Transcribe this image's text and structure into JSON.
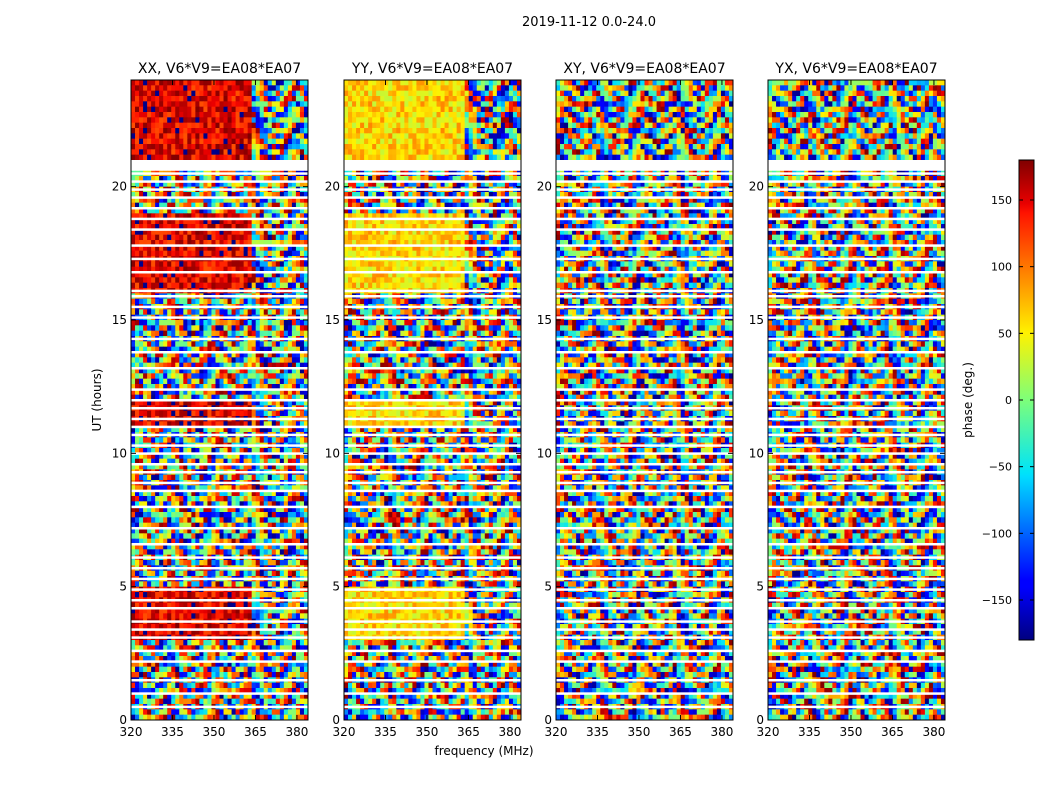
{
  "chart_data": {
    "type": "heatmap",
    "suptitle": "2019-11-12 0.0-24.0",
    "xlabel": "frequency (MHz)",
    "ylabel": "UT (hours)",
    "xlim": [
      320,
      384
    ],
    "ylim": [
      0,
      24
    ],
    "xticks": [
      320,
      335,
      350,
      365,
      380
    ],
    "yticks": [
      0,
      5,
      10,
      15,
      20
    ],
    "colormap": "jet",
    "panels": [
      {
        "title": "XX, V6*V9=EA08*EA07",
        "base_phase": 150,
        "band_break_mhz": 363
      },
      {
        "title": "YY, V6*V9=EA08*EA07",
        "base_phase": 60,
        "band_break_mhz": 363
      },
      {
        "title": "XY, V6*V9=EA08*EA07",
        "base_phase": 0,
        "band_break_mhz": 363
      },
      {
        "title": "YX, V6*V9=EA08*EA07",
        "base_phase": 0,
        "band_break_mhz": 363
      }
    ],
    "flagged_ut_hours": [
      0.5,
      1.0,
      1.5,
      2.2,
      2.6,
      3.1,
      3.4,
      3.7,
      4.2,
      4.5,
      4.9,
      5.3,
      5.7,
      6.1,
      6.6,
      7.2,
      8.0,
      8.6,
      8.9,
      9.3,
      9.6,
      10.0,
      10.3,
      10.7,
      11.0,
      11.3,
      11.7,
      12.0,
      12.4,
      13.2,
      13.8,
      14.3,
      15.1,
      15.5,
      15.9,
      16.1,
      16.8,
      17.3,
      17.8,
      18.4,
      18.8,
      19.2,
      19.6,
      19.9,
      20.2,
      20.5,
      20.9
    ],
    "gap_ut_range": [
      20.6,
      21.0
    ],
    "colorbar": {
      "label": "phase (deg.)",
      "min": -180,
      "max": 180,
      "ticks": [
        150,
        100,
        50,
        0,
        -50,
        -100,
        -150
      ],
      "tick_labels": [
        "150",
        "100",
        "50",
        "0",
        "−50",
        "−100",
        "−150"
      ]
    }
  }
}
